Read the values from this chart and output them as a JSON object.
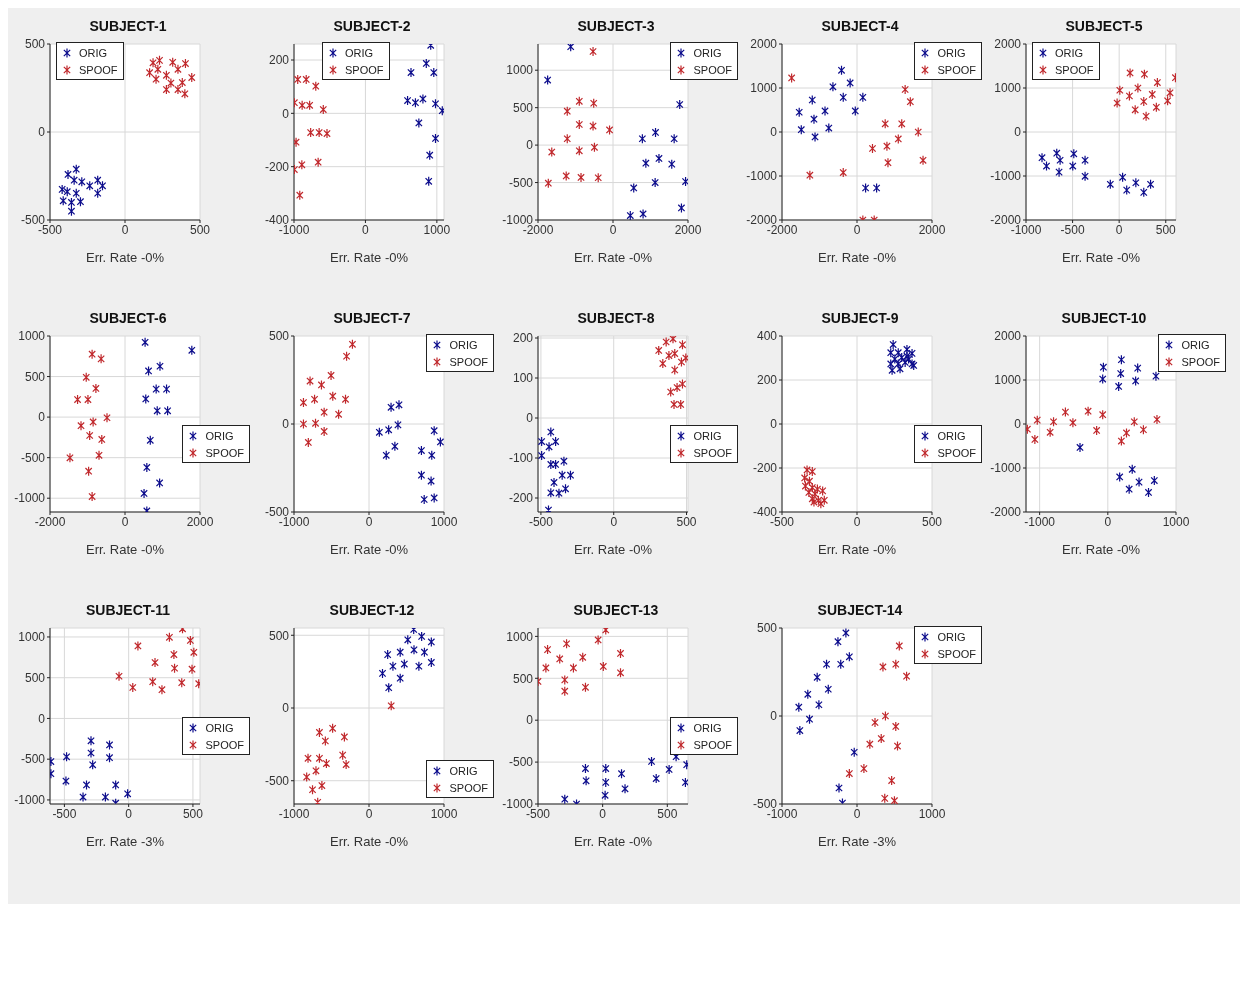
{
  "chart_data": [
    {
      "type": "scatter",
      "title": "SUBJECT-1",
      "xlabel": "Err. Rate -0%",
      "xlim": [
        -500,
        500
      ],
      "ylim": [
        -500,
        500
      ],
      "xticks": [
        -500,
        0,
        500
      ],
      "yticks": [
        -500,
        0,
        500
      ],
      "grid": true,
      "legend": "top left",
      "marker": "cross",
      "series": [
        {
          "name": "ORIG",
          "color": "#0c0c8c",
          "x": [
            -419,
            -380,
            -325,
            -339,
            -288,
            -235,
            -182,
            -150,
            -182,
            -325,
            -385,
            -412,
            -357,
            -297,
            -357
          ],
          "values": [
            -326,
            -241,
            -211,
            -274,
            -283,
            -306,
            -274,
            -306,
            -348,
            -348,
            -339,
            -391,
            -400,
            -396,
            -450
          ]
        },
        {
          "name": "SPOOF",
          "color": "#c0282c",
          "x": [
            164,
            187,
            230,
            219,
            207,
            276,
            318,
            353,
            403,
            306,
            276,
            353,
            382,
            399,
            445
          ],
          "values": [
            337,
            393,
            407,
            356,
            300,
            322,
            396,
            356,
            389,
            278,
            241,
            241,
            281,
            217,
            309
          ]
        }
      ]
    },
    {
      "type": "scatter",
      "title": "SUBJECT-2",
      "xlabel": "Err. Rate -0%",
      "xlim": [
        -1000,
        1100
      ],
      "ylim": [
        -400,
        260
      ],
      "xticks": [
        -1000,
        0,
        1000
      ],
      "yticks": [
        -400,
        -200,
        0,
        200
      ],
      "grid": true,
      "legend": "top",
      "marker": "cross",
      "series": [
        {
          "name": "ORIG",
          "color": "#0c0c8c",
          "x": [
            914,
            852,
            957,
            638,
            590,
            700,
            805,
            981,
            1076,
            748,
            981,
            900,
            886
          ],
          "values": [
            255,
            187,
            153,
            153,
            48,
            40,
            54,
            36,
            10,
            -36,
            -94,
            -157,
            -255
          ]
        },
        {
          "name": "SPOOF",
          "color": "#c0282c",
          "x": [
            -948,
            -829,
            -695,
            -995,
            -886,
            -781,
            -590,
            -971,
            -767,
            -648,
            -538,
            -995,
            -890,
            -662,
            -919
          ],
          "values": [
            127,
            127,
            102,
            40,
            30,
            30,
            14,
            -108,
            -72,
            -72,
            -76,
            -211,
            -193,
            -183,
            -307
          ]
        }
      ]
    },
    {
      "type": "scatter",
      "title": "SUBJECT-3",
      "xlabel": "Err. Rate -0%",
      "xlim": [
        -2000,
        2000
      ],
      "ylim": [
        -1000,
        1350
      ],
      "xticks": [
        -2000,
        0,
        2000
      ],
      "yticks": [
        -1000,
        -500,
        0,
        500,
        1000
      ],
      "grid": true,
      "legend": "top right",
      "marker": "cross",
      "series": [
        {
          "name": "ORIG",
          "color": "#0c0c8c",
          "x": [
            -1128,
            -1743,
            1779,
            783,
            1134,
            1631,
            876,
            1226,
            1567,
            553,
            1124,
            1935,
            461,
            802,
            1825
          ],
          "values": [
            1314,
            869,
            542,
            85,
            169,
            85,
            -242,
            -178,
            -254,
            -572,
            -500,
            -487,
            -941,
            -919,
            -839
          ]
        },
        {
          "name": "SPOOF",
          "color": "#c0282c",
          "x": [
            -532,
            -1220,
            -899,
            -514,
            -899,
            -532,
            -92,
            -1220,
            -1633,
            -899,
            -495,
            -1725,
            -1248,
            -853,
            -394
          ],
          "values": [
            1250,
            453,
            585,
            559,
            275,
            254,
            203,
            85,
            -93,
            -76,
            -30,
            -508,
            -411,
            -432,
            -436
          ]
        }
      ]
    },
    {
      "type": "scatter",
      "title": "SUBJECT-4",
      "xlabel": "Err. Rate -0%",
      "xlim": [
        -2000,
        2000
      ],
      "ylim": [
        -2000,
        2000
      ],
      "xticks": [
        -2000,
        0,
        2000
      ],
      "yticks": [
        -2000,
        -1000,
        0,
        1000,
        2000
      ],
      "grid": true,
      "legend": "top right",
      "marker": "cross",
      "series": [
        {
          "name": "ORIG",
          "color": "#0c0c8c",
          "x": [
            -413,
            -642,
            -183,
            -367,
            156,
            -46,
            -1193,
            -853,
            -1541,
            -1147,
            -752,
            -1486,
            -1119,
            229,
            523
          ],
          "values": [
            1401,
            1026,
            1116,
            787,
            787,
            479,
            727,
            479,
            449,
            292,
            90,
            52,
            -112,
            -1273,
            -1273
          ]
        },
        {
          "name": "SPOOF",
          "color": "#c0282c",
          "x": [
            -1743,
            1284,
            1422,
            752,
            1193,
            1633,
            413,
            798,
            1101,
            826,
            1761,
            -1257,
            -367,
            156,
            459
          ],
          "values": [
            1228,
            966,
            689,
            187,
            187,
            0,
            -375,
            -322,
            -157,
            -697,
            -644,
            -981,
            -921,
            -2000,
            -2000
          ]
        }
      ]
    },
    {
      "type": "scatter",
      "title": "SUBJECT-5",
      "xlabel": "Err. Rate -0%",
      "xlim": [
        -1000,
        610
      ],
      "ylim": [
        -2000,
        2000
      ],
      "xticks": [
        -1000,
        -500,
        0,
        500
      ],
      "yticks": [
        -2000,
        -1000,
        0,
        1000,
        2000
      ],
      "grid": true,
      "legend": "top left",
      "marker": "cross",
      "series": [
        {
          "name": "ORIG",
          "color": "#0c0c8c",
          "x": [
            -828,
            -780,
            -670,
            -634,
            -645,
            -487,
            -498,
            -366,
            -366,
            -95,
            37,
            81,
            179,
            264,
            337
          ],
          "values": [
            -584,
            -774,
            -482,
            -642,
            -912,
            -496,
            -774,
            -642,
            -1007,
            -1190,
            -1029,
            -1321,
            -1153,
            -1372,
            -1190
          ]
        },
        {
          "name": "SPOOF",
          "color": "#c0282c",
          "x": [
            117,
            271,
            7,
            201,
            110,
            410,
            355,
            604,
            546,
            -22,
            264,
            172,
            399,
            289,
            520
          ],
          "values": [
            1343,
            1314,
            949,
            1000,
            818,
            1124,
            854,
            1234,
            891,
            657,
            693,
            504,
            562,
            358,
            708
          ]
        }
      ]
    },
    {
      "type": "scatter",
      "title": "SUBJECT-6",
      "xlabel": "Err. Rate -0%",
      "xlim": [
        -2000,
        2000
      ],
      "ylim": [
        -1170,
        1000
      ],
      "xticks": [
        -2000,
        0,
        2000
      ],
      "yticks": [
        -1000,
        -500,
        0,
        500,
        1000
      ],
      "grid": true,
      "legend": "right",
      "marker": "cross",
      "series": [
        {
          "name": "ORIG",
          "color": "#0c0c8c",
          "x": [
            536,
            1782,
            628,
            933,
            831,
            1108,
            554,
            859,
            1136,
            674,
            582,
            923,
            508,
            582
          ],
          "values": [
            922,
            824,
            569,
            627,
            345,
            345,
            224,
            78,
            78,
            -286,
            -620,
            -812,
            -941,
            -1157
          ]
        },
        {
          "name": "SPOOF",
          "color": "#c0282c",
          "x": [
            -877,
            -637,
            -1034,
            -776,
            -1265,
            -988,
            -480,
            -1173,
            -850,
            -942,
            -619,
            -1468,
            -693,
            -970,
            -877
          ],
          "values": [
            776,
            718,
            490,
            353,
            216,
            216,
            -8,
            -106,
            -59,
            -227,
            -275,
            -502,
            -471,
            -667,
            -980
          ]
        }
      ]
    },
    {
      "type": "scatter",
      "title": "SUBJECT-7",
      "xlabel": "Err. Rate -0%",
      "xlim": [
        -1000,
        1000
      ],
      "ylim": [
        -500,
        500
      ],
      "xticks": [
        -1000,
        0,
        1000
      ],
      "yticks": [
        -500,
        0,
        500
      ],
      "grid": true,
      "legend": "top right",
      "marker": "cross",
      "series": [
        {
          "name": "ORIG",
          "color": "#0c0c8c",
          "x": [
            294,
            400,
            138,
            262,
            386,
            345,
            230,
            869,
            952,
            699,
            837,
            699,
            828,
            736,
            869
          ],
          "values": [
            95,
            109,
            -47,
            -33,
            -5,
            -127,
            -178,
            -38,
            -102,
            -151,
            -178,
            -291,
            -324,
            -429,
            -420
          ]
        },
        {
          "name": "SPOOF",
          "color": "#c0282c",
          "x": [
            -221,
            -299,
            -786,
            -506,
            -634,
            -874,
            -726,
            -483,
            -313,
            -598,
            -405,
            -874,
            -713,
            -598,
            -809
          ],
          "values": [
            453,
            385,
            244,
            276,
            222,
            122,
            140,
            158,
            140,
            67,
            55,
            0,
            4,
            -42,
            -105
          ]
        }
      ]
    },
    {
      "type": "scatter",
      "title": "SUBJECT-8",
      "xlabel": "Err. Rate -0%",
      "xlim": [
        -520,
        510
      ],
      "ylim": [
        -235,
        205
      ],
      "xticks": [
        -500,
        0,
        500
      ],
      "yticks": [
        -200,
        -100,
        0,
        100,
        200
      ],
      "grid": true,
      "legend": "right",
      "marker": "cross",
      "series": [
        {
          "name": "ORIG",
          "color": "#0c0c8c",
          "x": [
            -495,
            -495,
            -432,
            -444,
            -399,
            -432,
            -399,
            -342,
            -297,
            -354,
            -410,
            -432,
            -376,
            -331,
            -448
          ],
          "values": [
            -59,
            -94,
            -35,
            -72,
            -59,
            -116,
            -116,
            -108,
            -143,
            -143,
            -161,
            -187,
            -188,
            -177,
            -230
          ]
        },
        {
          "name": "SPOOF",
          "color": "#c0282c",
          "x": [
            309,
            360,
            407,
            472,
            337,
            379,
            419,
            465,
            495,
            419,
            391,
            435,
            472,
            414,
            460
          ],
          "values": [
            169,
            190,
            198,
            183,
            136,
            156,
            161,
            140,
            150,
            120,
            65,
            76,
            85,
            34,
            34
          ]
        }
      ]
    },
    {
      "type": "scatter",
      "title": "SUBJECT-9",
      "xlabel": "Err. Rate -0%",
      "xlim": [
        -500,
        500
      ],
      "ylim": [
        -400,
        400
      ],
      "xticks": [
        -500,
        0,
        500
      ],
      "yticks": [
        -400,
        -200,
        0,
        200,
        400
      ],
      "grid": true,
      "legend": "right",
      "marker": "cross",
      "series": [
        {
          "name": "ORIG",
          "color": "#0c0c8c",
          "x": [
            241,
            225,
            275,
            333,
            367,
            252,
            298,
            344,
            225,
            275,
            321,
            378,
            234,
            287,
            333,
            367
          ],
          "values": [
            361,
            324,
            324,
            339,
            321,
            295,
            302,
            295,
            273,
            273,
            280,
            266,
            244,
            251,
            309,
            273
          ]
        },
        {
          "name": "SPOOF",
          "color": "#c0282c",
          "x": [
            -333,
            -298,
            -349,
            -317,
            -344,
            -298,
            -264,
            -280,
            -229,
            -298,
            -257,
            -218,
            -241,
            -287,
            -321
          ],
          "values": [
            -209,
            -216,
            -245,
            -260,
            -282,
            -289,
            -296,
            -318,
            -304,
            -340,
            -347,
            -347,
            -362,
            -355,
            -311
          ]
        }
      ]
    },
    {
      "type": "scatter",
      "title": "SUBJECT-10",
      "xlabel": "Err. Rate -0%",
      "xlim": [
        -1200,
        1000
      ],
      "ylim": [
        -2000,
        2000
      ],
      "xticks": [
        -1000,
        0,
        1000
      ],
      "yticks": [
        -2000,
        -1000,
        0,
        1000,
        2000
      ],
      "grid": true,
      "legend": "top right",
      "marker": "cross",
      "series": [
        {
          "name": "ORIG",
          "color": "#0c0c8c",
          "x": [
            -65,
            -75,
            199,
            189,
            159,
            438,
            408,
            706,
            -408,
            174,
            358,
            313,
            458,
            682,
            597
          ],
          "values": [
            1292,
            1022,
            1460,
            1146,
            854,
            1270,
            978,
            1088,
            -533,
            -1204,
            -1029,
            -1482,
            -1321,
            -1285,
            -1555
          ]
        },
        {
          "name": "SPOOF",
          "color": "#c0282c",
          "x": [
            -1180,
            -1070,
            -1035,
            -846,
            -796,
            -622,
            -512,
            -289,
            -164,
            -75,
            388,
            274,
            199,
            522,
            721
          ],
          "values": [
            -117,
            -350,
            88,
            -190,
            51,
            270,
            29,
            292,
            -146,
            212,
            51,
            -204,
            -387,
            -131,
            102
          ]
        }
      ]
    },
    {
      "type": "scatter",
      "title": "SUBJECT-11",
      "xlabel": "Err. Rate -3%",
      "xlim": [
        -612,
        555
      ],
      "ylim": [
        -1050,
        1110
      ],
      "xticks": [
        -500,
        0,
        500
      ],
      "yticks": [
        -1000,
        -500,
        0,
        500,
        1000
      ],
      "grid": true,
      "legend": "right",
      "marker": "cross",
      "series": [
        {
          "name": "ORIG",
          "color": "#0c0c8c",
          "x": [
            -605,
            -605,
            -483,
            -488,
            -293,
            -293,
            -280,
            -149,
            -149,
            -328,
            -101,
            -355,
            -181,
            -101,
            -8
          ],
          "values": [
            -529,
            -678,
            -471,
            -769,
            -275,
            -424,
            -569,
            -325,
            -482,
            -816,
            -816,
            -965,
            -965,
            -1040,
            -925
          ]
        },
        {
          "name": "SPOOF",
          "color": "#c0282c",
          "x": [
            419,
            317,
            480,
            507,
            72,
            352,
            205,
            357,
            493,
            -75,
            32,
            187,
            259,
            413,
            545
          ],
          "values": [
            1100,
            996,
            957,
            812,
            890,
            784,
            686,
            616,
            604,
            518,
            380,
            451,
            353,
            439,
            427
          ]
        }
      ]
    },
    {
      "type": "scatter",
      "title": "SUBJECT-12",
      "xlabel": "Err. Rate -0%",
      "xlim": [
        -1000,
        1000
      ],
      "ylim": [
        -660,
        550
      ],
      "xticks": [
        -1000,
        0,
        1000
      ],
      "yticks": [
        -500,
        0,
        500
      ],
      "grid": true,
      "legend": "bottom right",
      "marker": "cross",
      "series": [
        {
          "name": "ORIG",
          "color": "#0c0c8c",
          "x": [
            596,
            517,
            702,
            831,
            249,
            416,
            600,
            739,
            319,
            471,
            665,
            831,
            180,
            416,
            263
          ],
          "values": [
            540,
            469,
            492,
            454,
            367,
            384,
            400,
            384,
            287,
            302,
            287,
            313,
            238,
            205,
            140
          ]
        },
        {
          "name": "SPOOF",
          "color": "#c0282c",
          "x": [
            296,
            -485,
            -328,
            -661,
            -582,
            -813,
            -661,
            -568,
            -351,
            -305,
            -707,
            -831,
            -753,
            -628,
            -684
          ],
          "values": [
            15,
            -140,
            -199,
            -168,
            -227,
            -346,
            -346,
            -382,
            -324,
            -389,
            -432,
            -475,
            -562,
            -533,
            -648
          ]
        }
      ]
    },
    {
      "type": "scatter",
      "title": "SUBJECT-13",
      "xlabel": "Err. Rate -0%",
      "xlim": [
        -500,
        660
      ],
      "ylim": [
        -1000,
        1100
      ],
      "xticks": [
        -500,
        0,
        500
      ],
      "yticks": [
        -1000,
        -500,
        0,
        500,
        1000
      ],
      "grid": true,
      "legend": "right",
      "marker": "cross",
      "series": [
        {
          "name": "ORIG",
          "color": "#0c0c8c",
          "x": [
            -133,
            24,
            146,
            -293,
            -202,
            -128,
            24,
            19,
            173,
            378,
            414,
            514,
            568,
            650,
            640
          ],
          "values": [
            -577,
            -577,
            -638,
            -942,
            -1000,
            -723,
            -742,
            -896,
            -819,
            -492,
            -696,
            -588,
            -435,
            -531,
            -742
          ]
        },
        {
          "name": "SPOOF",
          "color": "#c0282c",
          "x": [
            -500,
            -426,
            -439,
            -279,
            -332,
            -293,
            -293,
            -226,
            -154,
            -133,
            -35,
            24,
            5,
            138,
            138
          ],
          "values": [
            462,
            842,
            623,
            912,
            731,
            481,
            346,
            623,
            750,
            392,
            958,
            1077,
            642,
            796,
            565
          ]
        }
      ]
    },
    {
      "type": "scatter",
      "title": "SUBJECT-14",
      "xlabel": "Err. Rate -3%",
      "xlim": [
        -1000,
        1000
      ],
      "ylim": [
        -500,
        500
      ],
      "xticks": [
        -1000,
        0,
        1000
      ],
      "yticks": [
        -500,
        0,
        500
      ],
      "grid": true,
      "legend": "top right",
      "marker": "cross",
      "series": [
        {
          "name": "ORIG",
          "color": "#0c0c8c",
          "x": [
            -148,
            -254,
            -102,
            -217,
            -406,
            -531,
            -383,
            -656,
            -508,
            -776,
            -633,
            -762,
            -37,
            -240,
            -194
          ],
          "values": [
            472,
            422,
            336,
            294,
            294,
            220,
            152,
            123,
            64,
            50,
            -18,
            -83,
            -206,
            -409,
            -495
          ]
        },
        {
          "name": "SPOOF",
          "color": "#c0282c",
          "x": [
            564,
            346,
            517,
            661,
            379,
            240,
            517,
            323,
            540,
            171,
            92,
            -102,
            462,
            370,
            499
          ],
          "values": [
            398,
            279,
            294,
            226,
            0,
            -37,
            -59,
            -128,
            -171,
            -160,
            -299,
            -327,
            -367,
            -468,
            -481
          ]
        }
      ]
    }
  ]
}
